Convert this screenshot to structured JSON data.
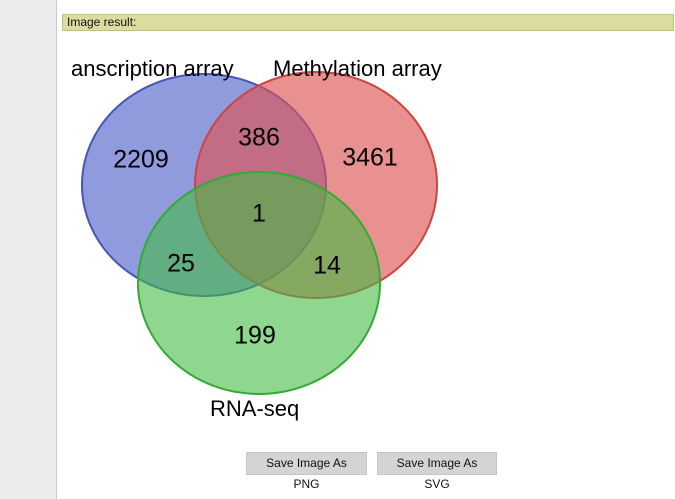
{
  "header": {
    "result_label": "Image result:"
  },
  "venn": {
    "sets": [
      {
        "label": "anscription array",
        "color": "#6677cc"
      },
      {
        "label": "Methylation array",
        "color": "#e06666"
      },
      {
        "label": "RNA-seq",
        "color": "#66cc66"
      }
    ],
    "regions": {
      "transcription_only": "2209",
      "transcription_methylation": "386",
      "methylation_only": "3461",
      "all_three": "1",
      "transcription_rnaseq": "25",
      "methylation_rnaseq": "14",
      "rnaseq_only": "199"
    }
  },
  "buttons": {
    "save_png": "Save Image As PNG",
    "save_svg": "Save Image As SVG"
  }
}
